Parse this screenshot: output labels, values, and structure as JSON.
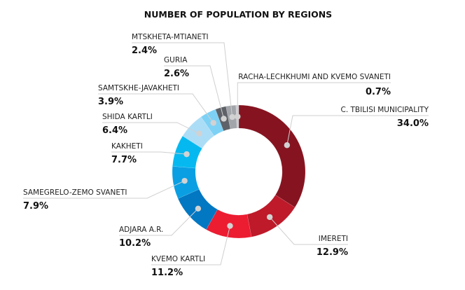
{
  "chart_data": {
    "type": "pie",
    "variant": "donut",
    "title": "NUMBER OF POPULATION BY REGIONS",
    "unit": "%",
    "start": "top",
    "direction": "clockwise",
    "slices": [
      {
        "label": "C. TBILISI MUNICIPALITY",
        "value": 34.0,
        "display": "34.0%",
        "color": "#861420"
      },
      {
        "label": "IMERETI",
        "value": 12.9,
        "display": "12.9%",
        "color": "#BE1A2A"
      },
      {
        "label": "KVEMO KARTLI",
        "value": 11.2,
        "display": "11.2%",
        "color": "#EC1C31"
      },
      {
        "label": "ADJARA A.R.",
        "value": 10.2,
        "display": "10.2%",
        "color": "#0277C2"
      },
      {
        "label": "SAMEGRELO-ZEMO SVANETI",
        "value": 7.9,
        "display": "7.9%",
        "color": "#0A9FE3"
      },
      {
        "label": "KAKHETI",
        "value": 7.7,
        "display": "7.7%",
        "color": "#05B9F0"
      },
      {
        "label": "SHIDA KARTLI",
        "value": 6.4,
        "display": "6.4%",
        "color": "#ACDDF7"
      },
      {
        "label": "SAMTSKHE-JAVAKHETI",
        "value": 3.9,
        "display": "3.9%",
        "color": "#7DD1F5"
      },
      {
        "label": "GURIA",
        "value": 2.6,
        "display": "2.6%",
        "color": "#5E6168"
      },
      {
        "label": "MTSKHETA-MTIANETI",
        "value": 2.4,
        "display": "2.4%",
        "color": "#A2A5AA"
      },
      {
        "label": "RACHA-LECHKHUMI AND KVEMO SVANETI",
        "value": 0.7,
        "display": "0.7%",
        "color": "#C9CBCE"
      }
    ]
  }
}
